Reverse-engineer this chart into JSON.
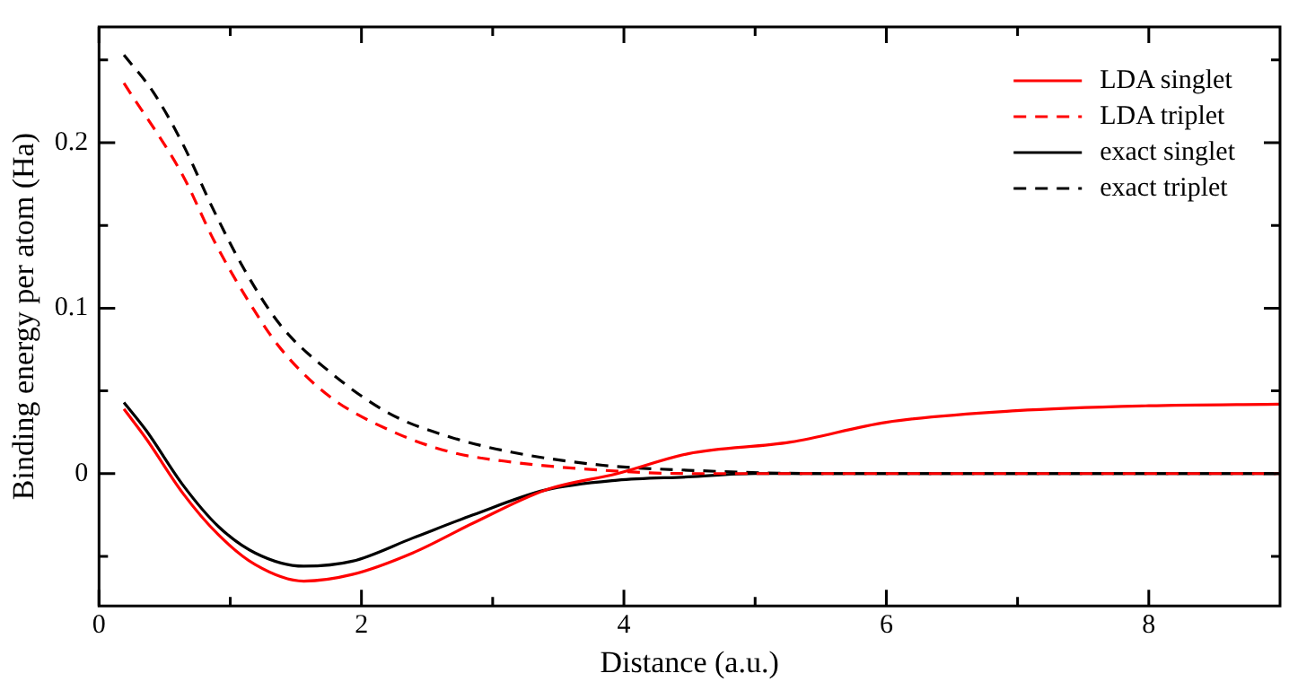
{
  "chart_data": {
    "type": "line",
    "xlabel": "Distance (a.u.)",
    "ylabel": "Binding energy per atom (Ha)",
    "xlim": [
      0,
      9
    ],
    "xticks": [
      0,
      {
        "value": 1,
        "label": null
      },
      2,
      {
        "value": 3,
        "label": null
      },
      4,
      {
        "value": 5,
        "label": null
      },
      6,
      {
        "value": 7,
        "label": null
      },
      8
    ],
    "ylim": [
      -0.08,
      0.27
    ],
    "yticks": [
      {
        "value": -0.05,
        "label": null
      },
      0,
      {
        "value": 0.05,
        "label": null
      },
      0.1,
      {
        "value": 0.15,
        "label": null
      },
      0.2,
      {
        "value": 0.25,
        "label": null
      }
    ],
    "grid": false,
    "legend": "top right",
    "marker": "none",
    "series": [
      {
        "name": "LDA singlet",
        "color": "#ff0000",
        "line_style": "solid",
        "x": [
          0.19,
          0.36,
          0.64,
          0.91,
          1.19,
          1.56,
          1.93,
          2.39,
          2.85,
          3.4,
          3.95,
          4.49,
          5.27,
          6.0,
          6.99,
          8.0,
          9.0
        ],
        "values": [
          0.039,
          0.021,
          -0.012,
          -0.037,
          -0.055,
          -0.065,
          -0.061,
          -0.048,
          -0.03,
          -0.01,
          0.0,
          0.012,
          0.019,
          0.031,
          0.038,
          0.041,
          0.042
        ]
      },
      {
        "name": "LDA triplet",
        "color": "#ff0000",
        "line_style": "dashed",
        "x": [
          0.19,
          0.64,
          0.875,
          1.11,
          1.38,
          1.75,
          2.22,
          2.68,
          3.14,
          3.84,
          4.49,
          5.5,
          7.0,
          9.0
        ],
        "values": [
          0.236,
          0.18,
          0.141,
          0.108,
          0.076,
          0.047,
          0.026,
          0.013,
          0.007,
          0.002,
          0.0,
          0.0,
          0.0,
          0.0
        ]
      },
      {
        "name": "exact singlet",
        "color": "#000000",
        "line_style": "solid",
        "x": [
          0.19,
          0.36,
          0.64,
          0.91,
          1.19,
          1.56,
          1.93,
          2.39,
          2.85,
          3.4,
          3.95,
          4.49,
          5.0,
          6.0,
          7.0,
          9.0
        ],
        "values": [
          0.043,
          0.026,
          -0.007,
          -0.032,
          -0.048,
          -0.056,
          -0.053,
          -0.039,
          -0.025,
          -0.01,
          -0.004,
          -0.002,
          0.0,
          0.0,
          0.0,
          0.0
        ]
      },
      {
        "name": "exact triplet",
        "color": "#000000",
        "line_style": "dashed",
        "x": [
          0.19,
          0.41,
          0.64,
          0.875,
          1.11,
          1.38,
          1.75,
          2.22,
          2.68,
          3.14,
          3.84,
          4.49,
          5.5,
          7.0,
          9.0
        ],
        "values": [
          0.253,
          0.231,
          0.199,
          0.159,
          0.123,
          0.09,
          0.062,
          0.036,
          0.022,
          0.013,
          0.005,
          0.002,
          0.0,
          0.0,
          0.0
        ]
      }
    ]
  }
}
